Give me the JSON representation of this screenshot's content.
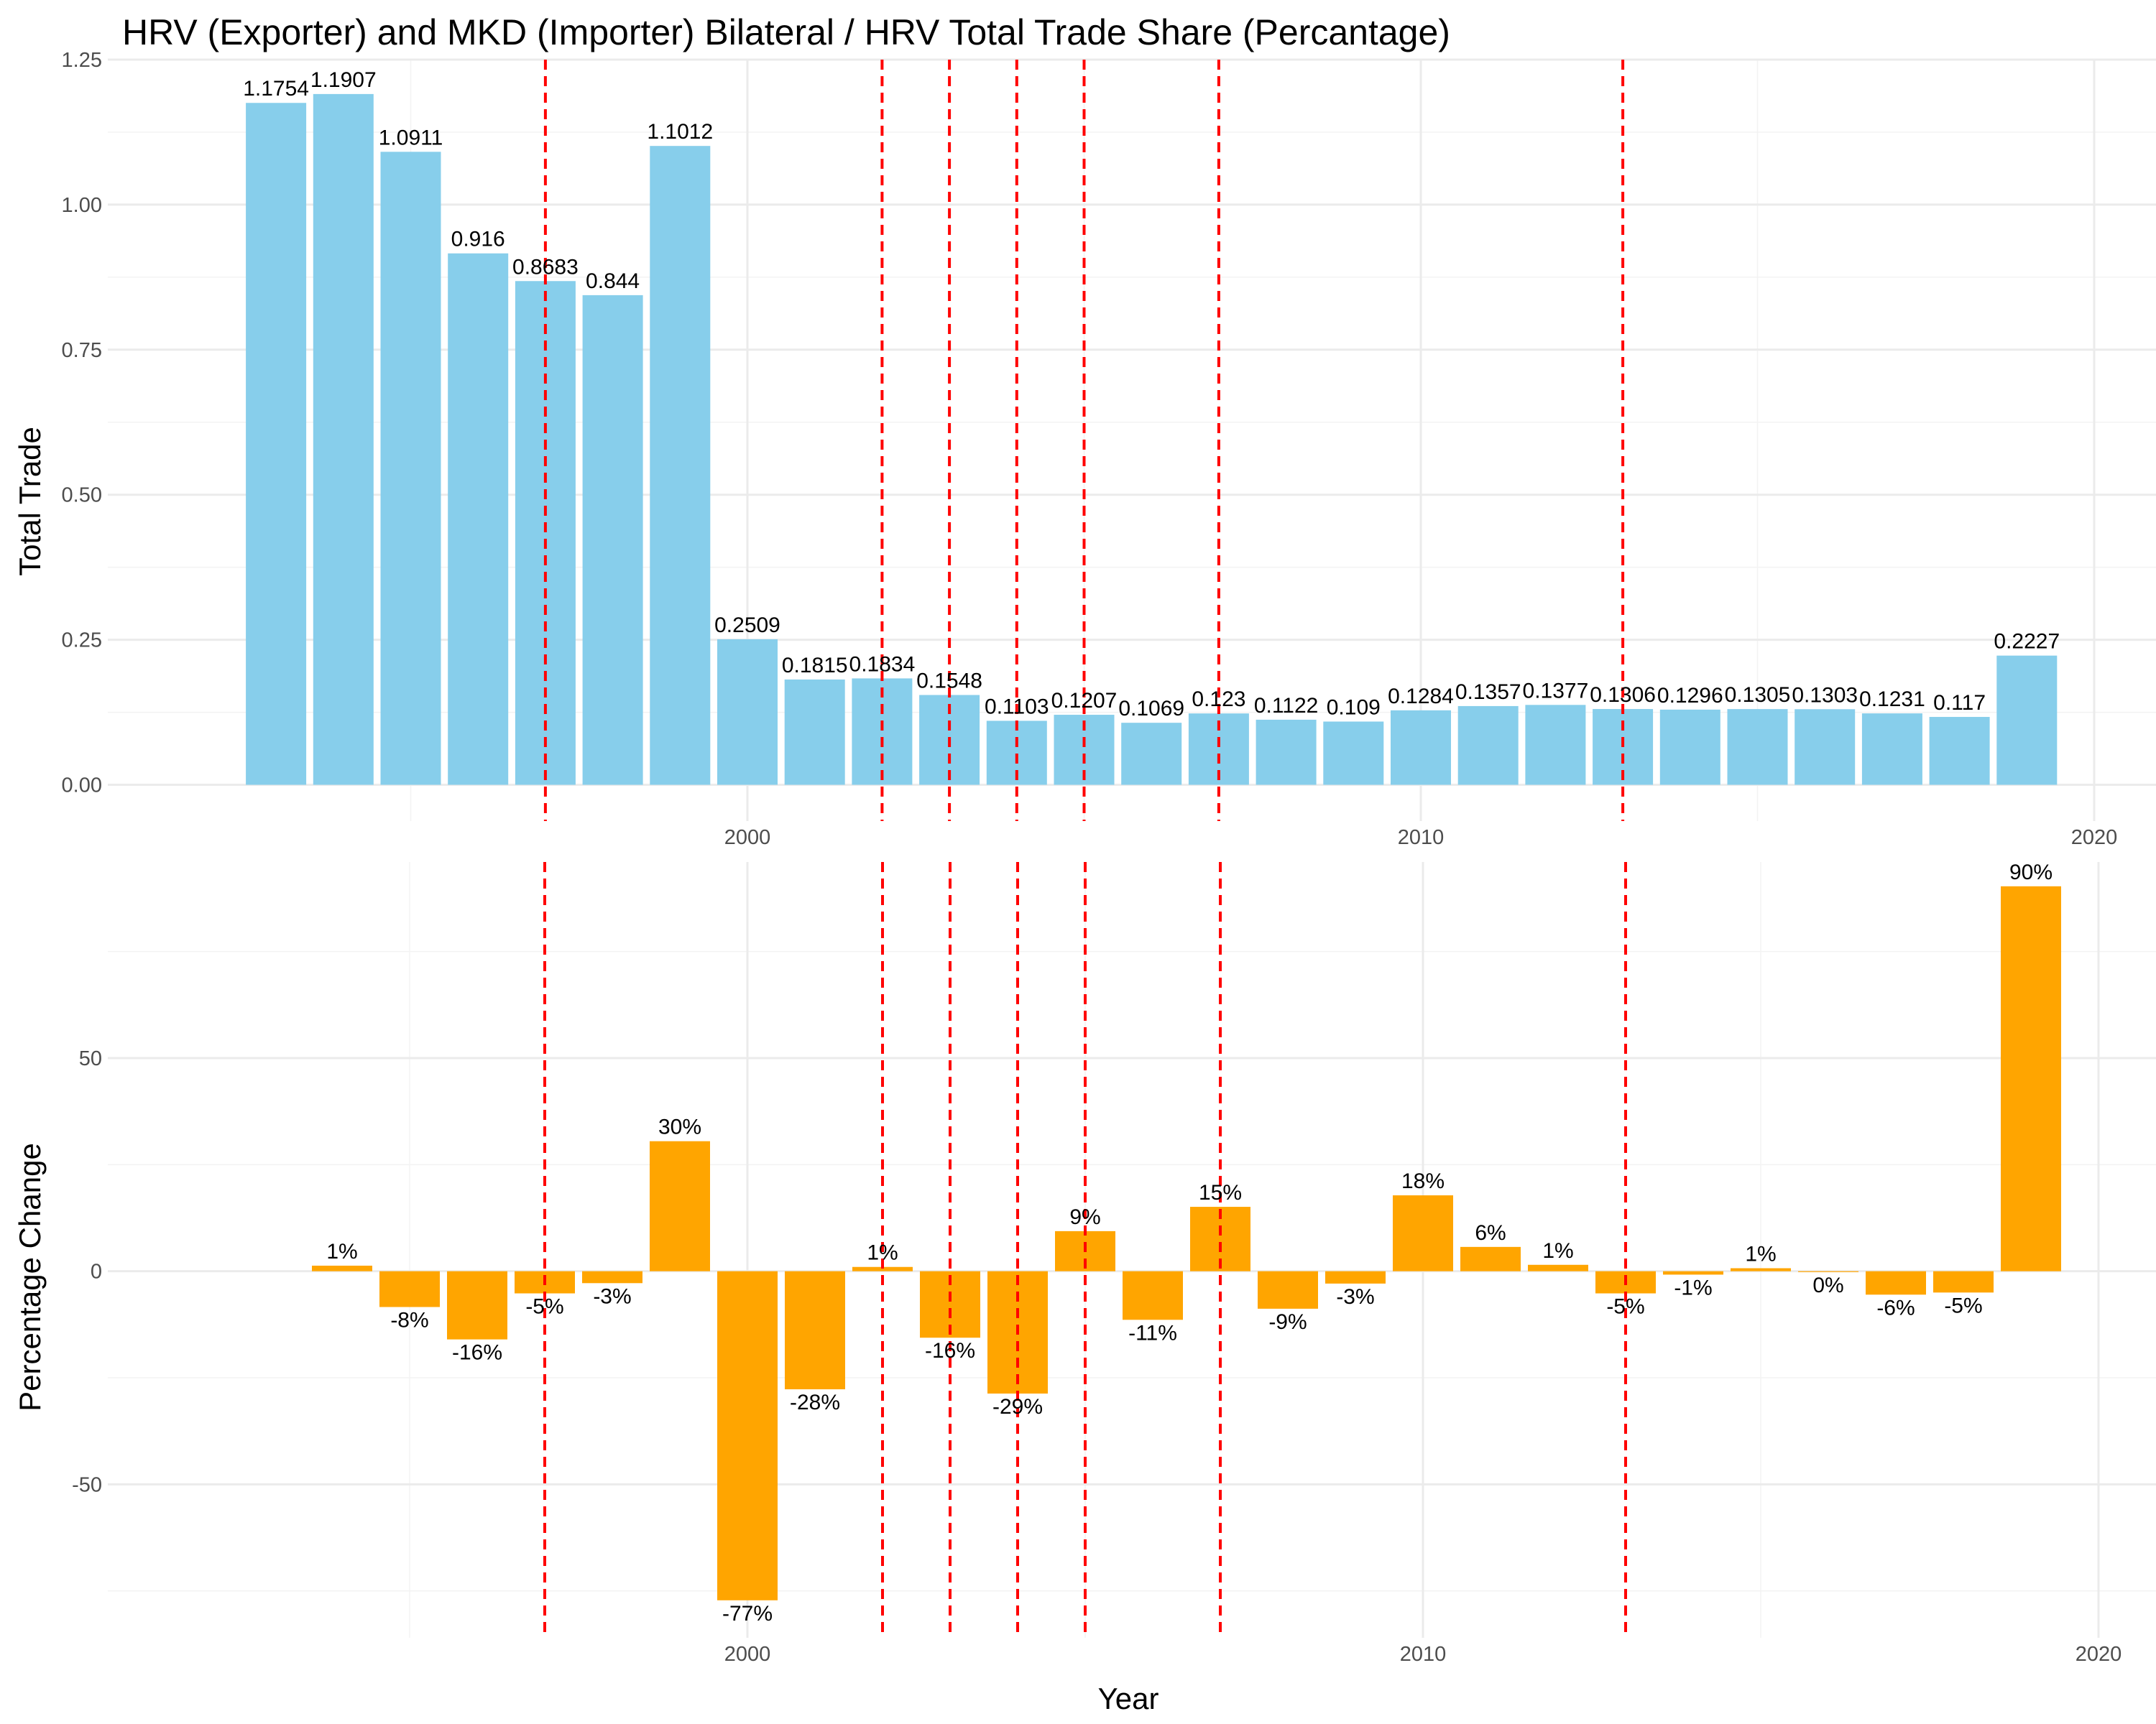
{
  "chart_data": [
    {
      "type": "bar",
      "title": "HRV (Exporter) and MKD (Importer) Bilateral /  HRV Total Trade Share (Percantage)",
      "xlabel": "",
      "ylabel": "Total Trade",
      "x": [
        1993,
        1994,
        1995,
        1996,
        1997,
        1998,
        1999,
        2000,
        2001,
        2002,
        2003,
        2004,
        2005,
        2006,
        2007,
        2008,
        2009,
        2010,
        2011,
        2012,
        2013,
        2014,
        2015,
        2016,
        2017,
        2018,
        2019
      ],
      "values": [
        1.1754,
        1.1907,
        1.0911,
        0.916,
        0.8683,
        0.844,
        1.1012,
        0.2509,
        0.1815,
        0.1834,
        0.1548,
        0.1103,
        0.1207,
        0.1069,
        0.123,
        0.1122,
        0.109,
        0.1284,
        0.1357,
        0.1377,
        0.1306,
        0.1296,
        0.1305,
        0.1303,
        0.1231,
        0.117,
        0.2227
      ],
      "labels": [
        "1.1754",
        "1.1907",
        "1.0911",
        "0.916",
        "0.8683",
        "0.844",
        "1.1012",
        "0.2509",
        "0.1815",
        "0.1834",
        "0.1548",
        "0.1103",
        "0.1207",
        "0.1069",
        "0.123",
        "0.1122",
        "0.109",
        "0.1284",
        "0.1357",
        "0.1377",
        "0.1306",
        "0.1296",
        "0.1305",
        "0.1303",
        "0.1231",
        "0.117",
        "0.2227"
      ],
      "bar_color": "#87ceeb",
      "xlim": [
        1985.7,
        2020.8
      ],
      "ylim": [
        -0.0625,
        1.25
      ],
      "yticks": [
        0,
        0.25,
        0.5,
        0.75,
        1.0,
        1.25
      ],
      "ytick_labels": [
        "0.00",
        "0.25",
        "0.50",
        "0.75",
        "1.00",
        "1.25"
      ],
      "xticks": [
        2000,
        2010,
        2020
      ],
      "xtick_labels": [
        "2000",
        "2010",
        "2020"
      ],
      "vlines": [
        1997,
        2002,
        2003,
        2004,
        2005,
        2007,
        2013
      ],
      "vline_color": "#ff0000",
      "grid": true
    },
    {
      "type": "bar",
      "title": "",
      "xlabel": "Year",
      "ylabel": "Percentage Change",
      "x": [
        1994,
        1995,
        1996,
        1997,
        1998,
        1999,
        2000,
        2001,
        2002,
        2003,
        2004,
        2005,
        2006,
        2007,
        2008,
        2009,
        2010,
        2011,
        2012,
        2013,
        2014,
        2015,
        2016,
        2017,
        2018,
        2019
      ],
      "values": [
        1.3,
        -8.4,
        -16.0,
        -5.2,
        -2.8,
        30.5,
        -77.2,
        -27.7,
        1.0,
        -15.6,
        -28.7,
        9.4,
        -11.4,
        15.1,
        -8.8,
        -2.9,
        17.8,
        5.7,
        1.5,
        -5.2,
        -0.8,
        0.7,
        -0.2,
        -5.5,
        -5.0,
        90.3
      ],
      "labels": [
        "1%",
        "-8%",
        "-16%",
        "-5%",
        "-3%",
        "30%",
        "-77%",
        "-28%",
        "1%",
        "-16%",
        "-29%",
        "9%",
        "-11%",
        "15%",
        "-9%",
        "-3%",
        "18%",
        "6%",
        "1%",
        "-5%",
        "-1%",
        "1%",
        "0%",
        "-6%",
        "-5%",
        "90%"
      ],
      "bar_color": "#ffa500",
      "xlim": [
        1990.5,
        2020.8
      ],
      "ylim": [
        -86,
        96
      ],
      "yticks": [
        -50,
        0,
        50
      ],
      "ytick_labels": [
        "-50",
        "0",
        "50"
      ],
      "xticks": [
        2000,
        2010,
        2020
      ],
      "xtick_labels": [
        "2000",
        "2010",
        "2020"
      ],
      "vlines": [
        1997,
        2002,
        2003,
        2004,
        2005,
        2007,
        2013
      ],
      "vline_color": "#ff0000",
      "grid": true
    }
  ]
}
